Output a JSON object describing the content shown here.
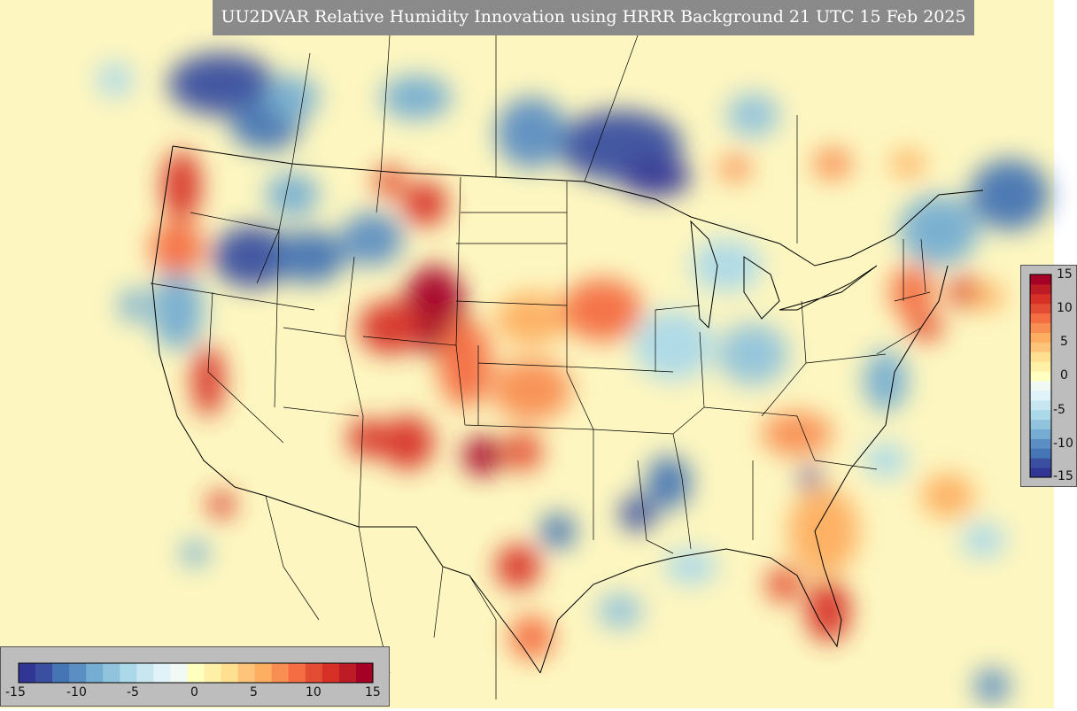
{
  "title": "UU2DVAR Relative Humidity Innovation using HRRR Background 21 UTC 15 Feb 2025",
  "colorbar": {
    "min": -15,
    "max": 15,
    "ticks": [
      "15",
      "10",
      "5",
      "0",
      "-5",
      "-10",
      "-15"
    ],
    "bottom_ticks": [
      "-15",
      "-10",
      "-5",
      "0",
      "5",
      "10",
      "15"
    ],
    "colors": [
      "#313695",
      "#3a4fa0",
      "#4575b4",
      "#5b8ec2",
      "#74add1",
      "#91c3dc",
      "#abd9e9",
      "#c8e6f0",
      "#e0f3f8",
      "#f0f9f4",
      "#ffffbf",
      "#fff0a8",
      "#fee090",
      "#fdc47a",
      "#fdae61",
      "#f88e52",
      "#f46d43",
      "#e34d33",
      "#d73027",
      "#bd1c26",
      "#a50026"
    ]
  },
  "map": {
    "region": "Continental United States (CONUS)",
    "field": "Relative Humidity Innovation",
    "background_color": "#fdf6c0",
    "border_color": "#000000"
  }
}
